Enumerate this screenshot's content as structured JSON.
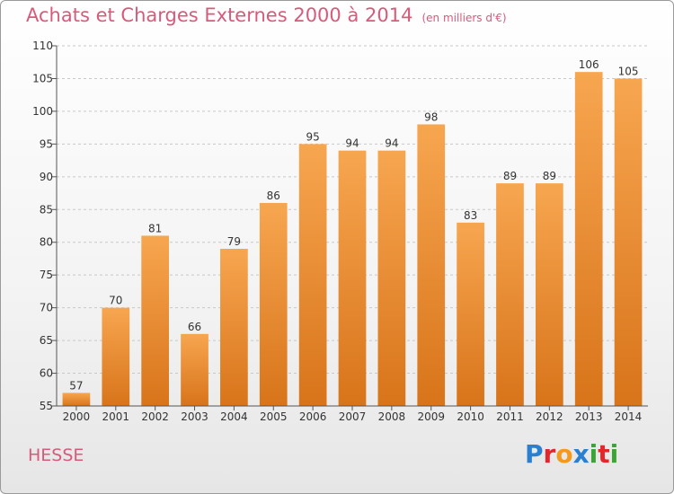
{
  "header": {
    "title": "Achats et Charges Externes 2000 à 2014",
    "subtitle": "(en milliers d'€)"
  },
  "footer": {
    "location": "HESSE",
    "brand": "Proxiti",
    "brand_colors": [
      "#2a7fd0",
      "#e3262b",
      "#f39a1c",
      "#2a7fd0",
      "#3aa535",
      "#e3262b",
      "#3aa535"
    ]
  },
  "chart_data": {
    "type": "bar",
    "title": "Achats et Charges Externes 2000 à 2014",
    "subtitle": "(en milliers d'€)",
    "categories": [
      "2000",
      "2001",
      "2002",
      "2003",
      "2004",
      "2005",
      "2006",
      "2007",
      "2008",
      "2009",
      "2010",
      "2011",
      "2012",
      "2013",
      "2014"
    ],
    "values": [
      57,
      70,
      81,
      66,
      79,
      86,
      95,
      94,
      94,
      98,
      83,
      89,
      89,
      106,
      105
    ],
    "ylim": [
      55,
      110
    ],
    "yticks": [
      55,
      60,
      65,
      70,
      75,
      80,
      85,
      90,
      95,
      100,
      105,
      110
    ],
    "grid": true,
    "bar_color_top": "#f7a650",
    "bar_color_bottom": "#d8741a"
  }
}
